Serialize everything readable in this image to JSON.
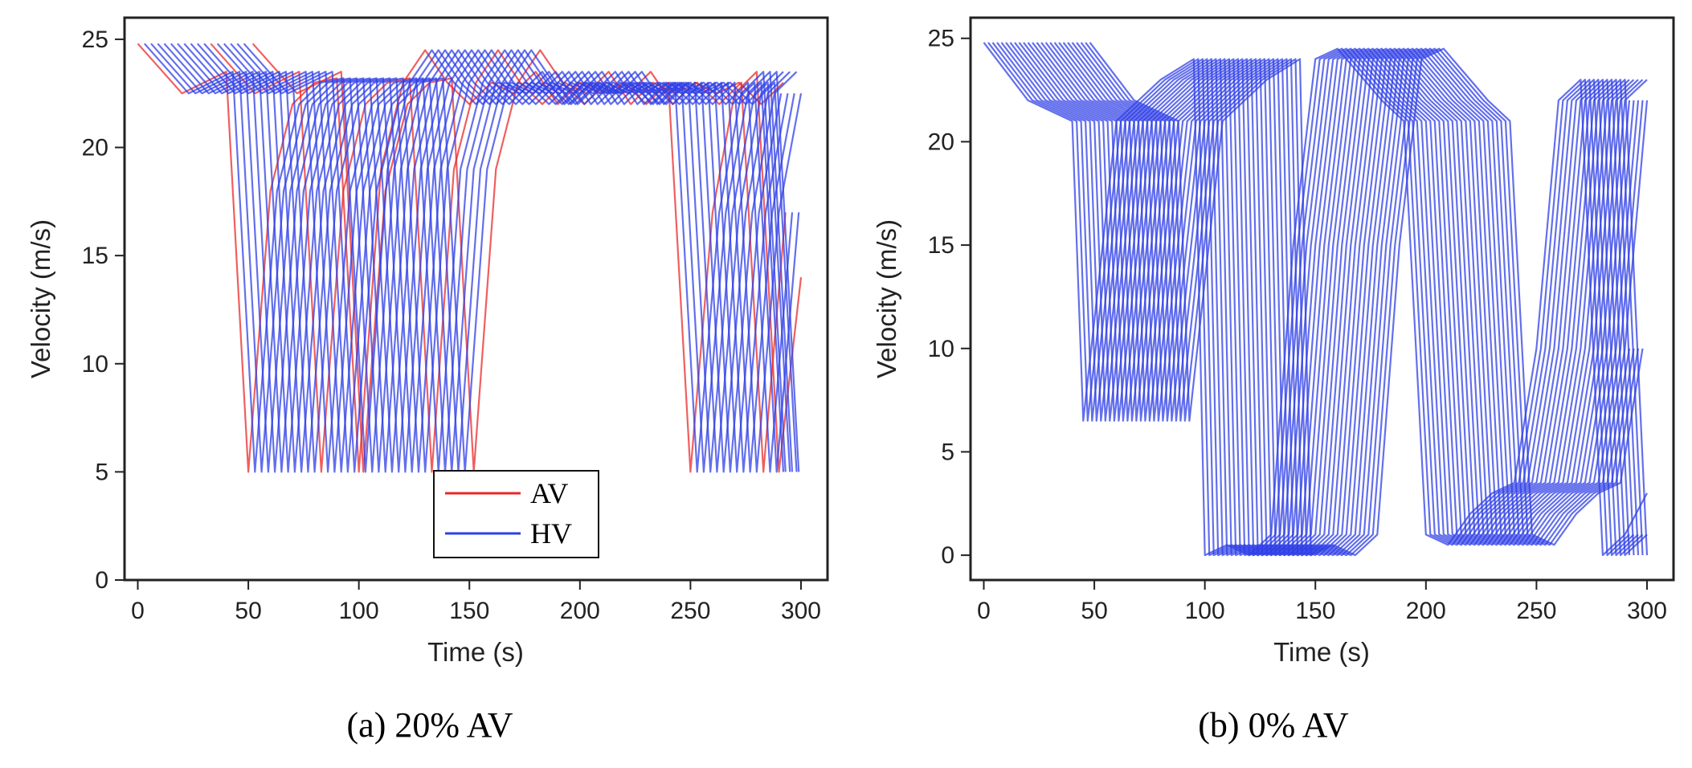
{
  "chart_data": [
    {
      "type": "line",
      "caption": "(a) 20% AV",
      "xlabel": "Time (s)",
      "ylabel": "Velocity (m/s)",
      "xlim": [
        -6,
        312
      ],
      "ylim": [
        0,
        26
      ],
      "xticks": [
        0,
        50,
        100,
        150,
        200,
        250,
        300
      ],
      "yticks": [
        0,
        5,
        10,
        15,
        20,
        25
      ],
      "grid": false,
      "legend": {
        "placement": "lower-center",
        "entries": [
          {
            "label": "AV",
            "color": "#e8292b"
          },
          {
            "label": "HV",
            "color": "#2f3fe6"
          }
        ]
      },
      "series_template": {
        "x": [
          0,
          20,
          40,
          50,
          60,
          70,
          80,
          90,
          100,
          110,
          120,
          130,
          140,
          150,
          160,
          170,
          180,
          190,
          200,
          210,
          220,
          230,
          240,
          250,
          260,
          270,
          280,
          290,
          300
        ],
        "y": [
          24.8,
          22.5,
          23.5,
          5.0,
          18.0,
          22.0,
          23.0,
          23.2,
          5.0,
          19.0,
          23.0,
          24.5,
          23.0,
          22.0,
          23.0,
          22.5,
          23.5,
          22.0,
          23.0,
          22.5,
          23.0,
          22.0,
          23.0,
          5.0,
          17.0,
          22.5,
          23.5,
          5.0,
          14.0
        ]
      },
      "vehicles": [
        {
          "type": "AV",
          "color": "#e8292b",
          "offsets_s": [
            0,
            33,
            52
          ]
        },
        {
          "type": "HV",
          "color": "#2f3fe6",
          "offsets_s": [
            3,
            6,
            9,
            12,
            15,
            18,
            21,
            24,
            27,
            30,
            36,
            39,
            42,
            45,
            48
          ]
        }
      ]
    },
    {
      "type": "line",
      "caption": "(b) 0% AV",
      "xlabel": "Time (s)",
      "ylabel": "Velocity (m/s)",
      "xlim": [
        -6,
        312
      ],
      "ylim": [
        -1.2,
        26
      ],
      "xticks": [
        0,
        50,
        100,
        150,
        200,
        250,
        300
      ],
      "yticks": [
        0,
        5,
        10,
        15,
        20,
        25
      ],
      "grid": false,
      "legend": null,
      "series_template": {
        "x": [
          0,
          20,
          40,
          45,
          60,
          80,
          95,
          100,
          110,
          120,
          130,
          140,
          150,
          160,
          180,
          190,
          200,
          210,
          220,
          230,
          240,
          250,
          260,
          270,
          280,
          290,
          300
        ],
        "y": [
          24.8,
          22.0,
          21.0,
          6.5,
          21.0,
          23.0,
          24.0,
          0.0,
          0.5,
          0.0,
          1.0,
          15.0,
          24.0,
          24.5,
          22.0,
          21.0,
          1.0,
          0.5,
          2.0,
          3.0,
          3.5,
          10.0,
          22.0,
          23.0,
          0.0,
          1.0,
          3.0
        ]
      },
      "vehicles": [
        {
          "type": "HV",
          "color": "#2f3fe6",
          "offsets_s": [
            0,
            2,
            4,
            6,
            8,
            10,
            12,
            14,
            16,
            18,
            20,
            22,
            24,
            26,
            28,
            30,
            32,
            34,
            36,
            38,
            40,
            42,
            44,
            46,
            48
          ]
        }
      ]
    }
  ]
}
